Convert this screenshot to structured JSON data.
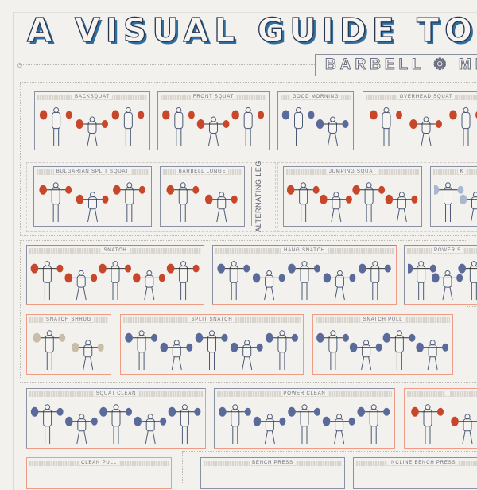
{
  "poster": {
    "title": "A VISUAL GUIDE TO",
    "subtitle": "BARBELL ⚙ ME",
    "colors": {
      "red": "#c8472a",
      "blue": "#5a6a9a",
      "tan": "#c9bca9",
      "lightblue": "#a9b8cf",
      "ink": "#2a3550",
      "shadow": "#2f6e9e"
    }
  },
  "panels": [
    {
      "label": "BACKSQUAT",
      "figures": 3,
      "plate": "red"
    },
    {
      "label": "FRONT SQUAT",
      "figures": 3,
      "plate": "red"
    },
    {
      "label": "GOOD MORNING",
      "figures": 2,
      "plate": "blue"
    },
    {
      "label": "OVERHEAD SQUAT",
      "figures": 3,
      "plate": "red"
    },
    {
      "label": "BULGARIAN SPLIT SQUAT",
      "figures": 3,
      "plate": "red"
    },
    {
      "label": "BARBELL LUNGE",
      "figures": 2,
      "plate": "red"
    },
    {
      "label": "JUMPING SQUAT",
      "figures": 4,
      "plate": "red"
    },
    {
      "label": "K",
      "figures": 2,
      "plate": "lightblue"
    },
    {
      "label": "SNATCH",
      "figures": 5,
      "plate": "red"
    },
    {
      "label": "HANG SNATCH",
      "figures": 5,
      "plate": "blue"
    },
    {
      "label": "POWER S",
      "figures": 3,
      "plate": "blue"
    },
    {
      "label": "SNATCH SHRUG",
      "figures": 2,
      "plate": "tan"
    },
    {
      "label": "SPLIT SNATCH",
      "figures": 5,
      "plate": "blue"
    },
    {
      "label": "SNATCH PULL",
      "figures": 4,
      "plate": "blue"
    },
    {
      "label": "SQUAT CLEAN",
      "figures": 5,
      "plate": "blue"
    },
    {
      "label": "POWER CLEAN",
      "figures": 5,
      "plate": "blue"
    },
    {
      "label": "",
      "figures": 2,
      "plate": "red"
    },
    {
      "label": "CLEAN PULL",
      "figures": 0,
      "plate": "blue"
    },
    {
      "label": "BENCH PRESS",
      "figures": 0,
      "plate": "blue"
    },
    {
      "label": "INCLINE BENCH PRESS",
      "figures": 0,
      "plate": "blue"
    }
  ],
  "side_label": "ALTERNATING LEG"
}
